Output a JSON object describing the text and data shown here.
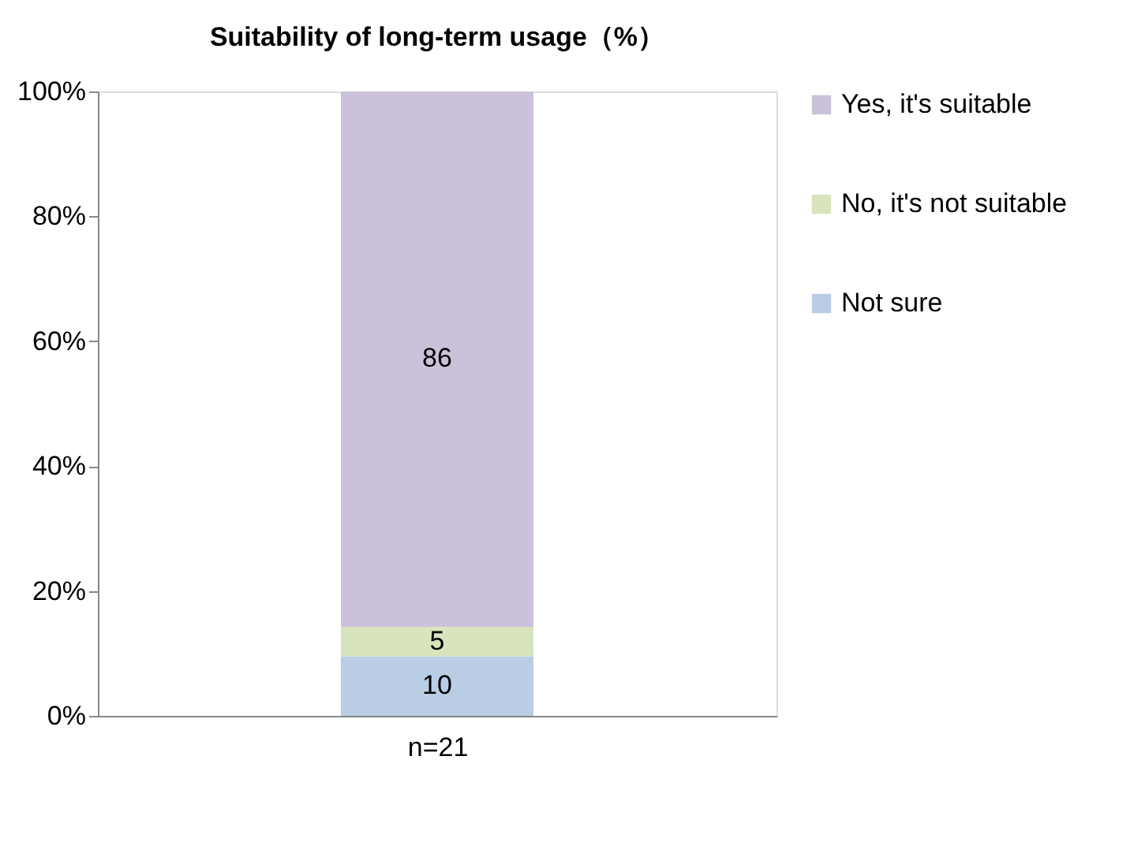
{
  "chart_data": {
    "type": "bar",
    "title": "Suitability of long-term usage（%）",
    "categories": [
      "n=21"
    ],
    "stacked": true,
    "series": [
      {
        "name": "Not sure",
        "color": "#b9cde5",
        "values": [
          9.52
        ],
        "value_labels": [
          "10"
        ]
      },
      {
        "name": "No, it's not suitable",
        "color": "#d7e4bd",
        "values": [
          4.76
        ],
        "value_labels": [
          "5"
        ]
      },
      {
        "name": "Yes, it's suitable",
        "color": "#ccc1da",
        "values": [
          85.71
        ],
        "value_labels": [
          "86"
        ]
      }
    ],
    "ylim": [
      0,
      100
    ],
    "yticks": [
      {
        "value": 0,
        "label": "0%"
      },
      {
        "value": 20,
        "label": "20%"
      },
      {
        "value": 40,
        "label": "40%"
      },
      {
        "value": 60,
        "label": "60%"
      },
      {
        "value": 80,
        "label": "80%"
      },
      {
        "value": 100,
        "label": "100%"
      }
    ],
    "grid": false,
    "legend": "right"
  }
}
